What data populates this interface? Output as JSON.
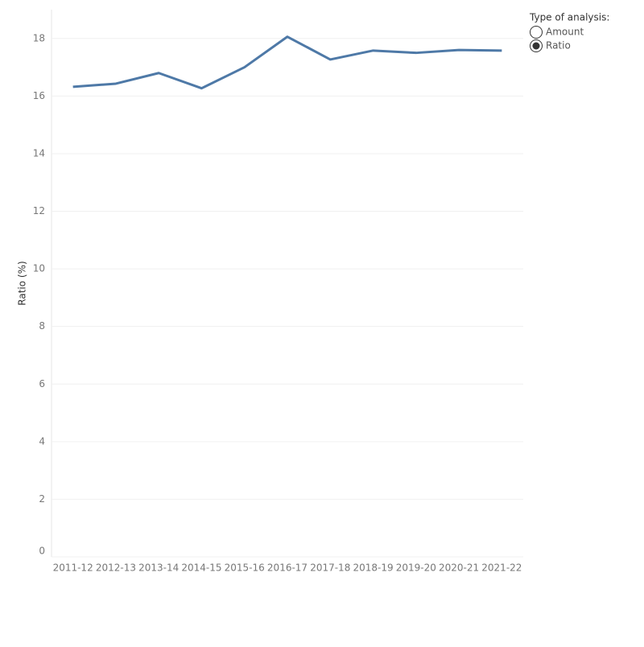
{
  "chart_data": {
    "type": "line",
    "y_label": "Ratio (%)",
    "categories": [
      "2011-12",
      "2012-13",
      "2013-14",
      "2014-15",
      "2015-16",
      "2016-17",
      "2017-18",
      "2018-19",
      "2019-20",
      "2020-21",
      "2021-22"
    ],
    "values": [
      16.32,
      16.43,
      16.8,
      16.27,
      17.0,
      18.06,
      17.27,
      17.58,
      17.5,
      17.6,
      17.58
    ],
    "color": "#4e79a7",
    "ylim": [
      0,
      19
    ],
    "yticks": [
      0,
      2,
      4,
      6,
      8,
      10,
      12,
      14,
      16,
      18
    ],
    "grid": true,
    "filter": {
      "title": "Type of analysis:",
      "options": [
        "Amount",
        "Ratio"
      ],
      "selected": "Ratio"
    }
  }
}
